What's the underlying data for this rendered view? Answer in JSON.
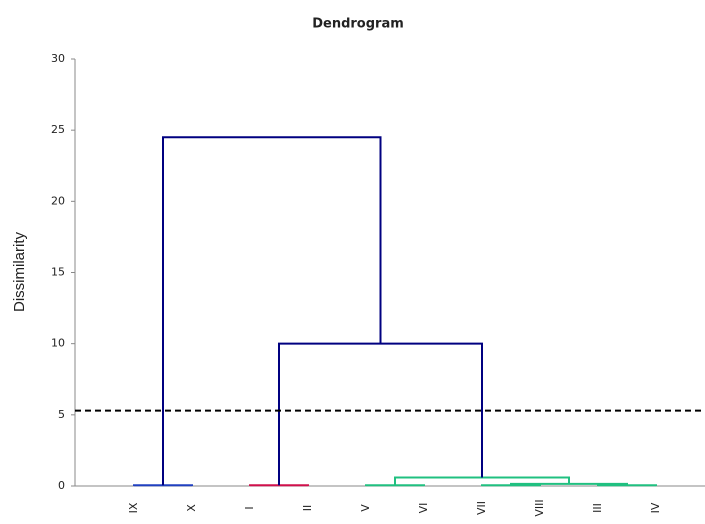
{
  "chart_data": {
    "type": "dendrogram",
    "title": "Dendrogram",
    "y_label": "Dissimilarity",
    "categories": [
      "IX",
      "X",
      "I",
      "II",
      "V",
      "VI",
      "VII",
      "VIII",
      "III",
      "IV"
    ],
    "ylim": [
      0,
      30
    ],
    "yticks": [
      0,
      5,
      10,
      15,
      20,
      25,
      30
    ],
    "grid": false,
    "threshold": 5.3,
    "threshold_color": "#000000",
    "tree": {
      "height": 24.5,
      "color": "#000080",
      "children": [
        {
          "height": 0.05,
          "color": "#2040c0",
          "children": [
            "IX",
            "X"
          ]
        },
        {
          "height": 10,
          "color": "#000080",
          "children": [
            {
              "height": 0.05,
              "color": "#d0104c",
              "children": [
                "I",
                "II"
              ]
            },
            {
              "height": 0.6,
              "color": "#20c080",
              "children": [
                {
                  "height": 0.05,
                  "color": "#20c080",
                  "children": [
                    "V",
                    "VI"
                  ]
                },
                {
                  "height": 0.15,
                  "color": "#20c080",
                  "children": [
                    {
                      "height": 0.05,
                      "color": "#20c080",
                      "children": [
                        "VII",
                        "VIII"
                      ]
                    },
                    {
                      "height": 0.05,
                      "color": "#20c080",
                      "children": [
                        "III",
                        "IV"
                      ]
                    }
                  ]
                }
              ]
            }
          ]
        }
      ]
    }
  }
}
